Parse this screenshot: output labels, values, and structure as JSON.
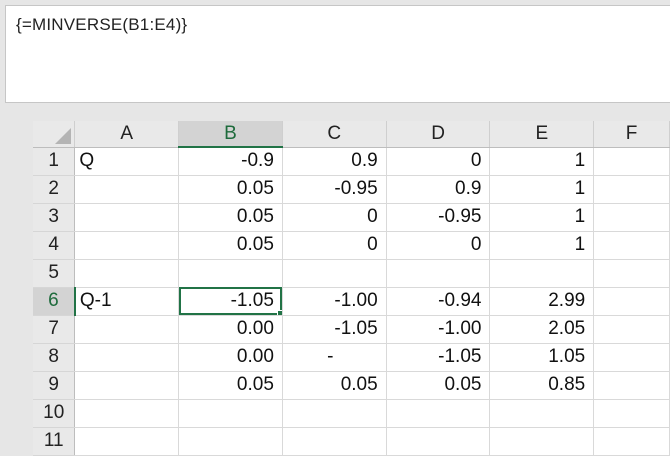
{
  "formula_bar": {
    "text": "{=MINVERSE(B1:E4)}"
  },
  "columns": [
    "A",
    "B",
    "C",
    "D",
    "E",
    "F"
  ],
  "selected_column": "B",
  "selected_row": "6",
  "rows": [
    {
      "num": "1",
      "cells": [
        "Q",
        "-0.9",
        "0.9",
        "0",
        "1",
        ""
      ]
    },
    {
      "num": "2",
      "cells": [
        "",
        "0.05",
        "-0.95",
        "0.9",
        "1",
        ""
      ]
    },
    {
      "num": "3",
      "cells": [
        "",
        "0.05",
        "0",
        "-0.95",
        "1",
        ""
      ]
    },
    {
      "num": "4",
      "cells": [
        "",
        "0.05",
        "0",
        "0",
        "1",
        ""
      ]
    },
    {
      "num": "5",
      "cells": [
        "",
        "",
        "",
        "",
        "",
        ""
      ]
    },
    {
      "num": "6",
      "cells": [
        "Q-1",
        "-1.05",
        "-1.00",
        "-0.94",
        "2.99",
        ""
      ]
    },
    {
      "num": "7",
      "cells": [
        "",
        "0.00",
        "-1.05",
        "-1.00",
        "2.05",
        ""
      ]
    },
    {
      "num": "8",
      "cells": [
        "",
        "0.00",
        "-",
        "-1.05",
        "1.05",
        ""
      ]
    },
    {
      "num": "9",
      "cells": [
        "",
        "0.05",
        "0.05",
        "0.05",
        "0.85",
        ""
      ]
    },
    {
      "num": "10",
      "cells": [
        "",
        "",
        "",
        "",
        "",
        ""
      ]
    },
    {
      "num": "11",
      "cells": [
        "",
        "",
        "",
        "",
        "",
        ""
      ]
    }
  ],
  "colors": {
    "selection_accent": "#217346",
    "header_bg": "#e9e9e9"
  }
}
